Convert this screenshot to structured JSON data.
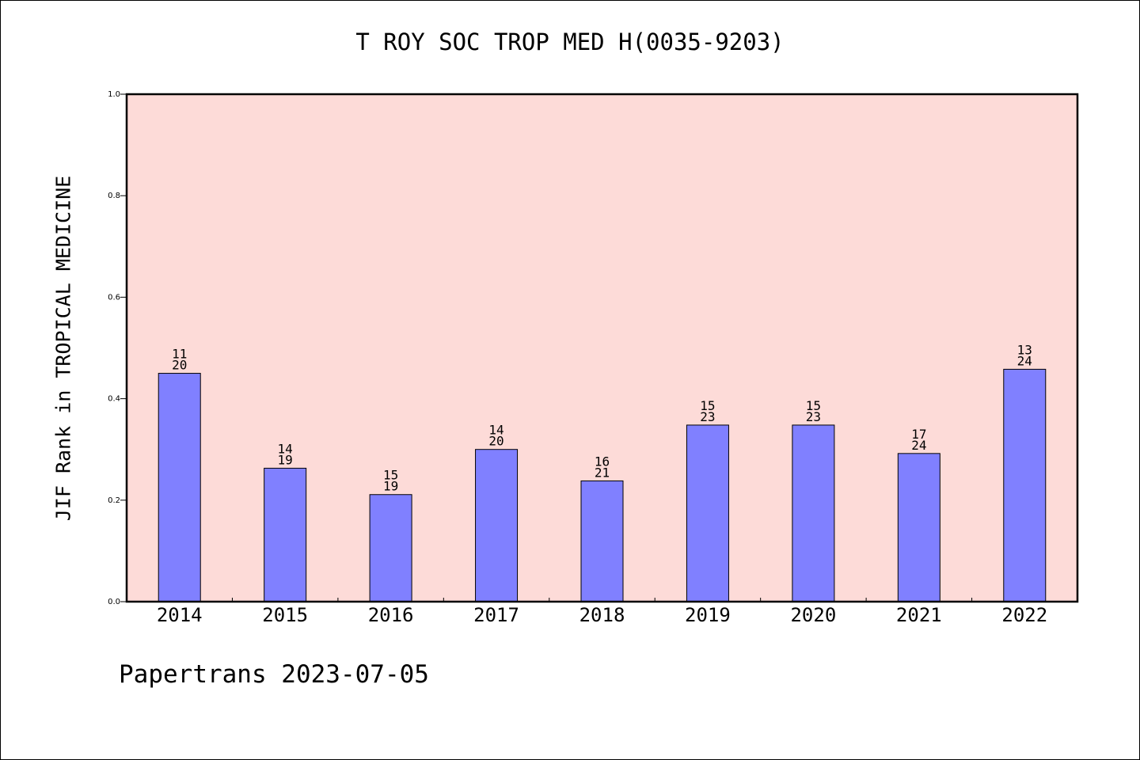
{
  "footer_text": "Papertrans 2023-07-05",
  "chart_data": {
    "type": "bar",
    "title": "T ROY SOC TROP MED H(0035-9203)",
    "ylabel": "JIF Rank in TROPICAL MEDICINE",
    "xlabel": "",
    "ylim": [
      0,
      1.0
    ],
    "yticks": [
      "0.0",
      "0.2",
      "0.4",
      "0.6",
      "0.8",
      "1.0"
    ],
    "categories": [
      "2014",
      "2015",
      "2016",
      "2017",
      "2018",
      "2019",
      "2020",
      "2021",
      "2022"
    ],
    "values": [
      0.45,
      0.263,
      0.211,
      0.3,
      0.238,
      0.348,
      0.348,
      0.292,
      0.458
    ],
    "rank": [
      "11",
      "14",
      "15",
      "14",
      "16",
      "15",
      "15",
      "17",
      "13"
    ],
    "total": [
      "20",
      "19",
      "19",
      "20",
      "21",
      "23",
      "23",
      "24",
      "24"
    ],
    "colors": {
      "plot_bg": "#fddbd8",
      "bar": "#8080ff"
    },
    "grid": false
  }
}
